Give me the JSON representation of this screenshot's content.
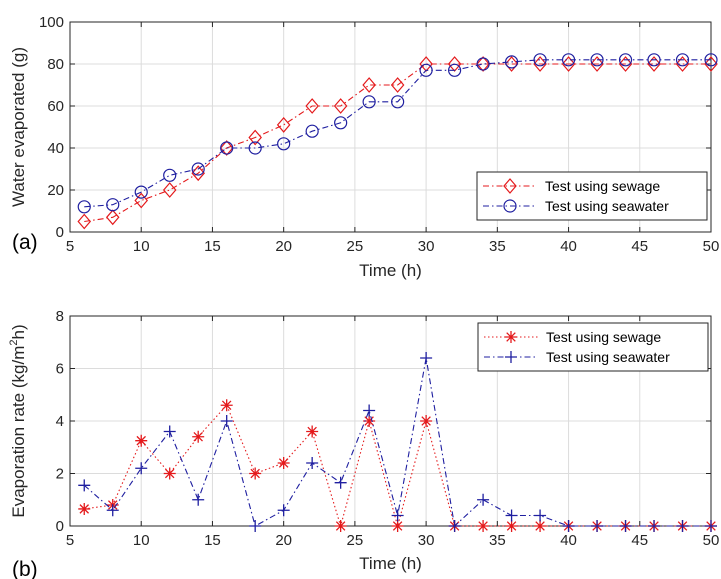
{
  "chart_data": [
    {
      "panel_label": "(a)",
      "type": "line",
      "xlabel": "Time (h)",
      "ylabel": "Water evaporated (g)",
      "xlim": [
        5,
        50
      ],
      "ylim": [
        0,
        100
      ],
      "xticks": [
        5,
        10,
        15,
        20,
        25,
        30,
        35,
        40,
        45,
        50
      ],
      "yticks": [
        0,
        20,
        40,
        60,
        80,
        100
      ],
      "grid": true,
      "legend_position": "lower-right",
      "series": [
        {
          "name": "Test using sewage",
          "color": "#e41a1c",
          "marker": "diamond",
          "line_style": "dash-dot",
          "x": [
            6,
            8,
            10,
            12,
            14,
            16,
            18,
            20,
            22,
            24,
            26,
            28,
            30,
            32,
            34,
            36,
            38,
            40,
            42,
            44,
            46,
            48,
            50
          ],
          "values": [
            5,
            7,
            15,
            20,
            28,
            40,
            45,
            51,
            60,
            60,
            70,
            70,
            80,
            80,
            80,
            80,
            80,
            80,
            80,
            80,
            80,
            80,
            80
          ]
        },
        {
          "name": "Test using seawater",
          "color": "#1f1fa0",
          "marker": "circle",
          "line_style": "dash-dot",
          "x": [
            6,
            8,
            10,
            12,
            14,
            16,
            18,
            20,
            22,
            24,
            26,
            28,
            30,
            32,
            34,
            36,
            38,
            40,
            42,
            44,
            46,
            48,
            50
          ],
          "values": [
            12,
            13,
            19,
            27,
            30,
            40,
            40,
            42,
            48,
            52,
            62,
            62,
            77,
            77,
            80,
            81,
            82,
            82,
            82,
            82,
            82,
            82,
            82
          ]
        }
      ]
    },
    {
      "panel_label": "(b)",
      "type": "line",
      "xlabel": "Time (h)",
      "ylabel_parts": [
        "Evaporation rate (kg/m",
        "2",
        "h)"
      ],
      "xlim": [
        5,
        50
      ],
      "ylim": [
        0,
        8
      ],
      "xticks": [
        5,
        10,
        15,
        20,
        25,
        30,
        35,
        40,
        45,
        50
      ],
      "yticks": [
        0,
        2,
        4,
        6,
        8
      ],
      "grid": true,
      "legend_position": "top-right",
      "series": [
        {
          "name": "Test using sewage",
          "color": "#e41a1c",
          "marker": "asterisk",
          "line_style": "dotted",
          "x": [
            6,
            8,
            10,
            12,
            14,
            16,
            18,
            20,
            22,
            24,
            26,
            28,
            30,
            32,
            34,
            36,
            38,
            40,
            42,
            44,
            46,
            48,
            50
          ],
          "values": [
            0.65,
            0.8,
            3.25,
            2.0,
            3.4,
            4.6,
            2.0,
            2.4,
            3.6,
            0,
            4.0,
            0,
            4.0,
            0,
            0,
            0,
            0,
            0,
            0,
            0,
            0,
            0,
            0
          ]
        },
        {
          "name": "Test using seawater",
          "color": "#1f1fa0",
          "marker": "plus",
          "line_style": "dash-dot",
          "x": [
            6,
            8,
            10,
            12,
            14,
            16,
            18,
            20,
            22,
            24,
            26,
            28,
            30,
            32,
            34,
            36,
            38,
            40,
            42,
            44,
            46,
            48,
            50
          ],
          "values": [
            1.55,
            0.6,
            2.2,
            3.6,
            1.0,
            4.0,
            0,
            0.6,
            2.4,
            1.65,
            4.4,
            0.4,
            6.4,
            0,
            1.0,
            0.4,
            0.4,
            0,
            0,
            0,
            0,
            0,
            0
          ]
        }
      ]
    }
  ]
}
